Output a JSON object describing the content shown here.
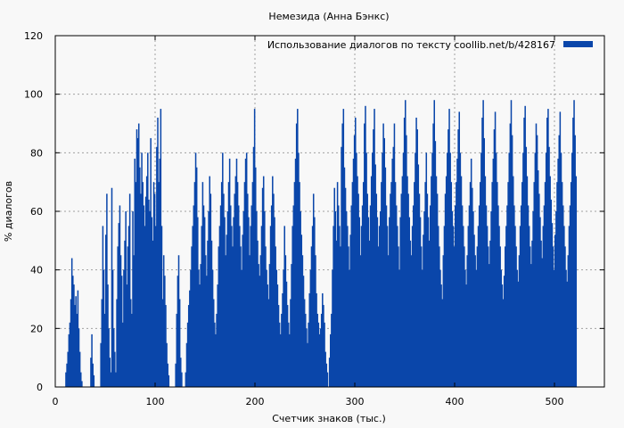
{
  "chart_data": {
    "type": "bar",
    "title": "Немезида (Анна Бэнкс)",
    "xlabel": "Счетчик знаков (тыс.)",
    "ylabel": "% диалогов",
    "xlim": [
      0,
      550
    ],
    "ylim": [
      0,
      120
    ],
    "xticks": [
      0,
      100,
      200,
      300,
      400,
      500
    ],
    "yticks": [
      0,
      20,
      40,
      60,
      80,
      100,
      120
    ],
    "grid": true,
    "legend_position": "top-right",
    "series": [
      {
        "name": "Использование диалогов по тексту  coollib.net/b/428167",
        "color": "#0a46aa",
        "x_start": 0,
        "x_step": 1,
        "values": [
          0,
          0,
          0,
          0,
          0,
          0,
          0,
          0,
          0,
          0,
          5,
          8,
          12,
          18,
          22,
          30,
          44,
          38,
          35,
          28,
          31,
          25,
          33,
          20,
          12,
          5,
          2,
          0,
          0,
          0,
          0,
          0,
          0,
          0,
          0,
          10,
          18,
          8,
          4,
          0,
          0,
          0,
          0,
          0,
          0,
          15,
          30,
          55,
          40,
          25,
          52,
          66,
          35,
          20,
          10,
          5,
          68,
          40,
          20,
          12,
          5,
          30,
          48,
          56,
          62,
          45,
          38,
          22,
          40,
          50,
          60,
          35,
          48,
          55,
          66,
          30,
          25,
          60,
          45,
          78,
          70,
          88,
          85,
          90,
          75,
          66,
          80,
          70,
          62,
          55,
          65,
          72,
          80,
          64,
          60,
          85,
          58,
          50,
          70,
          66,
          55,
          82,
          92,
          70,
          78,
          95,
          55,
          30,
          45,
          38,
          28,
          15,
          8,
          4,
          0,
          0,
          0,
          0,
          0,
          0,
          8,
          25,
          38,
          45,
          30,
          10,
          5,
          0,
          0,
          0,
          5,
          15,
          22,
          28,
          33,
          40,
          48,
          55,
          62,
          70,
          80,
          75,
          58,
          40,
          35,
          42,
          55,
          70,
          62,
          58,
          45,
          38,
          50,
          60,
          72,
          66,
          50,
          40,
          30,
          22,
          18,
          25,
          35,
          48,
          55,
          62,
          70,
          80,
          66,
          58,
          45,
          52,
          60,
          70,
          78,
          62,
          55,
          48,
          58,
          66,
          72,
          78,
          70,
          62,
          55,
          48,
          40,
          52,
          60,
          70,
          78,
          80,
          66,
          58,
          45,
          55,
          62,
          70,
          82,
          95,
          75,
          60,
          50,
          42,
          38,
          45,
          55,
          68,
          72,
          60,
          48,
          40,
          35,
          30,
          42,
          55,
          62,
          72,
          66,
          58,
          48,
          40,
          35,
          28,
          22,
          18,
          25,
          32,
          40,
          55,
          45,
          36,
          28,
          22,
          18,
          30,
          42,
          55,
          62,
          70,
          78,
          90,
          95,
          80,
          70,
          60,
          52,
          45,
          38,
          30,
          25,
          20,
          15,
          22,
          32,
          40,
          48,
          55,
          66,
          58,
          45,
          32,
          25,
          22,
          18,
          20,
          25,
          32,
          28,
          22,
          12,
          8,
          5,
          0,
          10,
          18,
          25,
          40,
          55,
          68,
          60,
          50,
          70,
          62,
          55,
          48,
          82,
          90,
          95,
          75,
          68,
          60,
          55,
          48,
          40,
          52,
          62,
          70,
          78,
          86,
          92,
          80,
          72,
          66,
          58,
          45,
          55,
          62,
          70,
          90,
          96,
          80,
          66,
          58,
          50,
          62,
          72,
          80,
          88,
          95,
          76,
          66,
          58,
          48,
          55,
          60,
          70,
          80,
          90,
          85,
          75,
          62,
          55,
          45,
          58,
          66,
          70,
          78,
          82,
          90,
          70,
          62,
          55,
          48,
          40,
          58,
          66,
          72,
          80,
          92,
          98,
          86,
          72,
          66,
          58,
          50,
          45,
          55,
          62,
          70,
          80,
          92,
          88,
          76,
          66,
          58,
          48,
          40,
          52,
          60,
          70,
          80,
          66,
          58,
          50,
          62,
          72,
          80,
          90,
          98,
          84,
          72,
          66,
          55,
          48,
          40,
          35,
          30,
          45,
          55,
          66,
          72,
          80,
          88,
          95,
          80,
          70,
          60,
          55,
          48,
          62,
          70,
          78,
          88,
          94,
          80,
          72,
          62,
          55,
          48,
          40,
          35,
          45,
          55,
          62,
          70,
          78,
          68,
          60,
          52,
          45,
          40,
          48,
          55,
          62,
          70,
          80,
          92,
          98,
          85,
          72,
          62,
          55,
          48,
          42,
          50,
          60,
          70,
          78,
          88,
          94,
          80,
          70,
          62,
          55,
          48,
          40,
          35,
          30,
          38,
          48,
          55,
          62,
          70,
          80,
          90,
          98,
          86,
          72,
          62,
          55,
          48,
          40,
          36,
          45,
          55,
          62,
          70,
          80,
          92,
          96,
          82,
          72,
          62,
          55,
          48,
          42,
          50,
          60,
          70,
          80,
          90,
          86,
          74,
          66,
          58,
          50,
          44,
          55,
          62,
          70,
          80,
          92,
          95,
          82,
          72,
          64,
          56,
          48,
          40,
          52,
          60,
          70,
          78,
          86,
          94,
          80,
          70,
          62,
          55,
          48,
          40,
          36,
          45,
          55,
          62,
          70,
          80,
          92,
          98,
          86,
          72
        ]
      }
    ]
  }
}
